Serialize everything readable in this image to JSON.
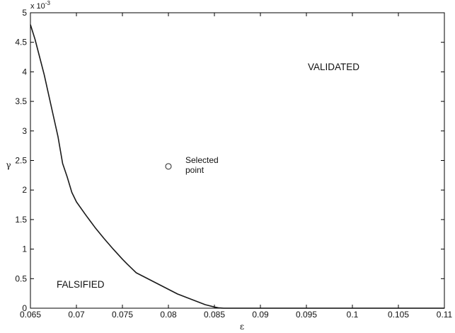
{
  "chart_data": {
    "type": "line",
    "xlabel": "ε",
    "ylabel": "γ",
    "xlim": [
      0.065,
      0.11
    ],
    "ylim": [
      0,
      0.005
    ],
    "x_ticks": [
      "0.065",
      "0.07",
      "0.075",
      "0.08",
      "0.085",
      "0.09",
      "0.095",
      "0.1",
      "0.105",
      "0.11"
    ],
    "y_ticks": [
      "0",
      "0.5",
      "1",
      "1.5",
      "2",
      "2.5",
      "3",
      "3.5",
      "4",
      "4.5",
      "5"
    ],
    "y_multiplier": "x 10",
    "y_multiplier_exponent": "-3",
    "grid": false,
    "series": [
      {
        "x": [
          0.065,
          0.0655,
          0.066,
          0.0665,
          0.067,
          0.0675,
          0.068,
          0.0685,
          0.069,
          0.0695,
          0.07,
          0.071,
          0.072,
          0.073,
          0.074,
          0.075,
          0.0755,
          0.0765,
          0.078,
          0.0795,
          0.081,
          0.082,
          0.083,
          0.084,
          0.085,
          0.0855,
          0.086,
          0.11
        ],
        "y": [
          0.0048,
          0.00455,
          0.00425,
          0.00395,
          0.0036,
          0.00325,
          0.0029,
          0.00245,
          0.00222,
          0.00196,
          0.0018,
          0.00158,
          0.00137,
          0.00118,
          0.001,
          0.00083,
          0.00075,
          0.0006,
          0.00048,
          0.00036,
          0.00024,
          0.00018,
          0.00012,
          6e-05,
          2e-05,
          5e-06,
          0,
          0
        ]
      }
    ],
    "selected_point": {
      "x": 0.08,
      "y": 0.0024,
      "label_line1": "Selected",
      "label_line2": "point"
    },
    "annotations": [
      "VALIDATED",
      "FALSIFIED"
    ],
    "colors": {
      "line": "#1a1a1a",
      "axis": "#000000",
      "background": "#ffffff"
    }
  }
}
